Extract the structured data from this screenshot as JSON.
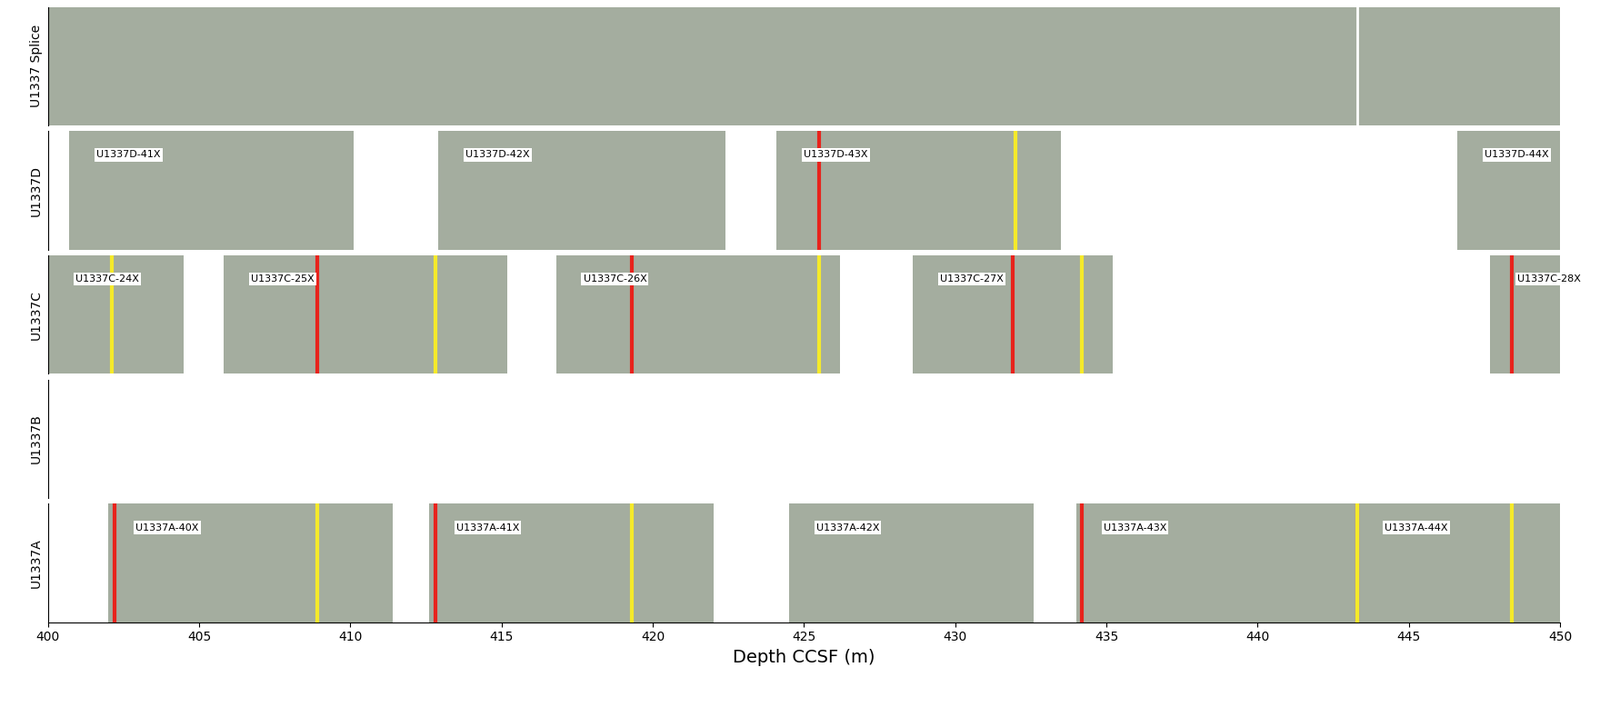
{
  "chart_data": {
    "type": "core_splice",
    "xlabel": "Depth CCSF (m)",
    "xlim": [
      400,
      450
    ],
    "xticks": [
      400,
      405,
      410,
      415,
      420,
      425,
      430,
      435,
      440,
      445,
      450
    ],
    "core_color": "#a4ad9f",
    "rows": [
      {
        "name": "U1337 Splice",
        "splice": true,
        "cores": [
          {
            "label": null,
            "top": 400,
            "bottom": 450
          }
        ],
        "joins": [
          443.3
        ],
        "ties": []
      },
      {
        "name": "U1337D",
        "cores": [
          {
            "label": "U1337D-41X",
            "top": 400.7,
            "bottom": 410.1
          },
          {
            "label": "U1337D-42X",
            "top": 412.9,
            "bottom": 422.4
          },
          {
            "label": "U1337D-43X",
            "top": 424.1,
            "bottom": 433.5
          },
          {
            "label": "U1337D-44X",
            "top": 446.6,
            "bottom": 450
          }
        ],
        "ties": [
          {
            "depth": 425.5,
            "color": "#e8231c"
          },
          {
            "depth": 432.0,
            "color": "#f5ea2a"
          }
        ]
      },
      {
        "name": "U1337C",
        "cores": [
          {
            "label": "U1337C-24X",
            "top": 400,
            "bottom": 404.5
          },
          {
            "label": "U1337C-25X",
            "top": 405.8,
            "bottom": 415.2
          },
          {
            "label": "U1337C-26X",
            "top": 416.8,
            "bottom": 426.2
          },
          {
            "label": "U1337C-27X",
            "top": 428.6,
            "bottom": 435.2
          },
          {
            "label": "U1337C-28X",
            "top": 447.7,
            "bottom": 450
          }
        ],
        "ties": [
          {
            "depth": 402.1,
            "color": "#f5ea2a"
          },
          {
            "depth": 408.9,
            "color": "#e8231c"
          },
          {
            "depth": 412.8,
            "color": "#f5ea2a"
          },
          {
            "depth": 419.3,
            "color": "#e8231c"
          },
          {
            "depth": 425.5,
            "color": "#f5ea2a"
          },
          {
            "depth": 431.9,
            "color": "#e8231c"
          },
          {
            "depth": 434.2,
            "color": "#f5ea2a"
          },
          {
            "depth": 448.4,
            "color": "#e8231c"
          }
        ]
      },
      {
        "name": "U1337B",
        "cores": [],
        "ties": []
      },
      {
        "name": "U1337A",
        "cores": [
          {
            "label": "U1337A-40X",
            "top": 402.0,
            "bottom": 411.4
          },
          {
            "label": "U1337A-41X",
            "top": 412.6,
            "bottom": 422.0
          },
          {
            "label": "U1337A-42X",
            "top": 424.5,
            "bottom": 432.6
          },
          {
            "label": "U1337A-43X",
            "top": 434.0,
            "bottom": 443.3
          },
          {
            "label": "U1337A-44X",
            "top": 443.3,
            "bottom": 450
          }
        ],
        "ties": [
          {
            "depth": 402.2,
            "color": "#e8231c"
          },
          {
            "depth": 408.9,
            "color": "#f5ea2a"
          },
          {
            "depth": 412.8,
            "color": "#e8231c"
          },
          {
            "depth": 419.3,
            "color": "#f5ea2a"
          },
          {
            "depth": 434.2,
            "color": "#e8231c"
          },
          {
            "depth": 443.3,
            "color": "#e8231c"
          },
          {
            "depth": 443.3,
            "color": "#f5ea2a"
          },
          {
            "depth": 448.4,
            "color": "#f5ea2a"
          }
        ]
      }
    ]
  }
}
